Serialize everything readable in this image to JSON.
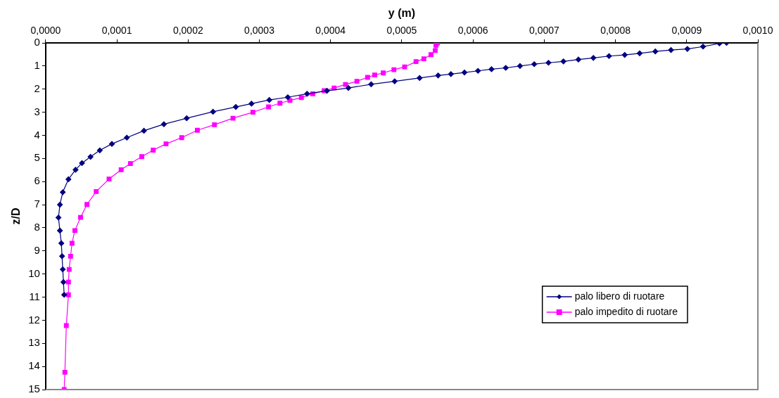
{
  "chart_data": {
    "type": "line",
    "xlabel": "y (m)",
    "ylabel": "z/D",
    "xlim": [
      0,
      0.001
    ],
    "ylim": [
      15,
      0
    ],
    "xticks": [
      {
        "value": 0,
        "label": "0,0000"
      },
      {
        "value": 0.0001,
        "label": "0,0001"
      },
      {
        "value": 0.0002,
        "label": "0,0002"
      },
      {
        "value": 0.0003,
        "label": "0,0003"
      },
      {
        "value": 0.0004,
        "label": "0,0004"
      },
      {
        "value": 0.0005,
        "label": "0,0005"
      },
      {
        "value": 0.0006,
        "label": "0,0006"
      },
      {
        "value": 0.0007,
        "label": "0,0007"
      },
      {
        "value": 0.0008,
        "label": "0,0008"
      },
      {
        "value": 0.0009,
        "label": "0,0009"
      },
      {
        "value": 0.001,
        "label": "0,0010"
      }
    ],
    "yticks": [
      0,
      1,
      2,
      3,
      4,
      5,
      6,
      7,
      8,
      9,
      10,
      11,
      12,
      13,
      14,
      15
    ],
    "grid": false,
    "legend": "bottom right",
    "line_style": "solid",
    "series": [
      {
        "name": "palo libero di ruotare",
        "color": "#000080",
        "marker": "diamond",
        "x": [
          0.000956,
          0.000946,
          0.000923,
          0.000901,
          0.000878,
          0.000856,
          0.000834,
          0.000813,
          0.000791,
          0.000769,
          0.000748,
          0.000727,
          0.000706,
          0.000686,
          0.000666,
          0.000646,
          0.000626,
          0.000607,
          0.000588,
          0.000569,
          0.000551,
          0.000525,
          0.00049,
          0.000457,
          0.000425,
          0.000395,
          0.000367,
          0.00034,
          0.000314,
          0.000289,
          0.000267,
          0.000235,
          0.000198,
          0.000166,
          0.000138,
          0.000114,
          9.3e-05,
          7.6e-05,
          6.3e-05,
          5.1e-05,
          4.2e-05,
          3.2e-05,
          2.4e-05,
          2e-05,
          1.8e-05,
          2e-05,
          2.2e-05,
          2.3e-05,
          2.4e-05,
          2.5e-05,
          2.6e-05
        ],
        "values": [
          0,
          0.02,
          0.16,
          0.26,
          0.31,
          0.37,
          0.45,
          0.52,
          0.57,
          0.65,
          0.72,
          0.8,
          0.86,
          0.92,
          1,
          1.08,
          1.14,
          1.21,
          1.28,
          1.35,
          1.41,
          1.52,
          1.66,
          1.79,
          1.95,
          2.07,
          2.2,
          2.35,
          2.47,
          2.63,
          2.77,
          2.98,
          3.26,
          3.52,
          3.8,
          4.1,
          4.37,
          4.65,
          4.93,
          5.2,
          5.49,
          5.9,
          6.46,
          7,
          7.56,
          8.12,
          8.67,
          9.23,
          9.8,
          10.35,
          10.9
        ]
      },
      {
        "name": "palo impedito di ruotare",
        "color": "#ff00ff",
        "marker": "square",
        "x": [
          0.00055,
          0.000548,
          0.000547,
          0.000541,
          0.000531,
          0.00052,
          0.000504,
          0.000489,
          0.000474,
          0.000462,
          0.000452,
          0.000437,
          0.000421,
          0.000405,
          0.000391,
          0.000375,
          0.000359,
          0.000343,
          0.000329,
          0.000313,
          0.000291,
          0.000263,
          0.000237,
          0.000213,
          0.000191,
          0.000169,
          0.000151,
          0.000135,
          0.000119,
          0.000106,
          8.9e-05,
          7.1e-05,
          5.8e-05,
          4.9e-05,
          4.1e-05,
          3.7e-05,
          3.5e-05,
          3.3e-05,
          3.2e-05,
          3.2e-05,
          2.9e-05,
          2.7e-05,
          2.6e-05
        ],
        "values": [
          0,
          0.1,
          0.33,
          0.51,
          0.69,
          0.81,
          1.04,
          1.16,
          1.3,
          1.39,
          1.49,
          1.66,
          1.8,
          1.95,
          2.07,
          2.2,
          2.37,
          2.49,
          2.61,
          2.77,
          3,
          3.26,
          3.54,
          3.78,
          4.1,
          4.37,
          4.64,
          4.92,
          5.22,
          5.49,
          5.89,
          6.43,
          6.99,
          7.55,
          8.12,
          8.67,
          9.23,
          9.8,
          10.35,
          10.9,
          12.23,
          14.25,
          15
        ]
      }
    ]
  }
}
